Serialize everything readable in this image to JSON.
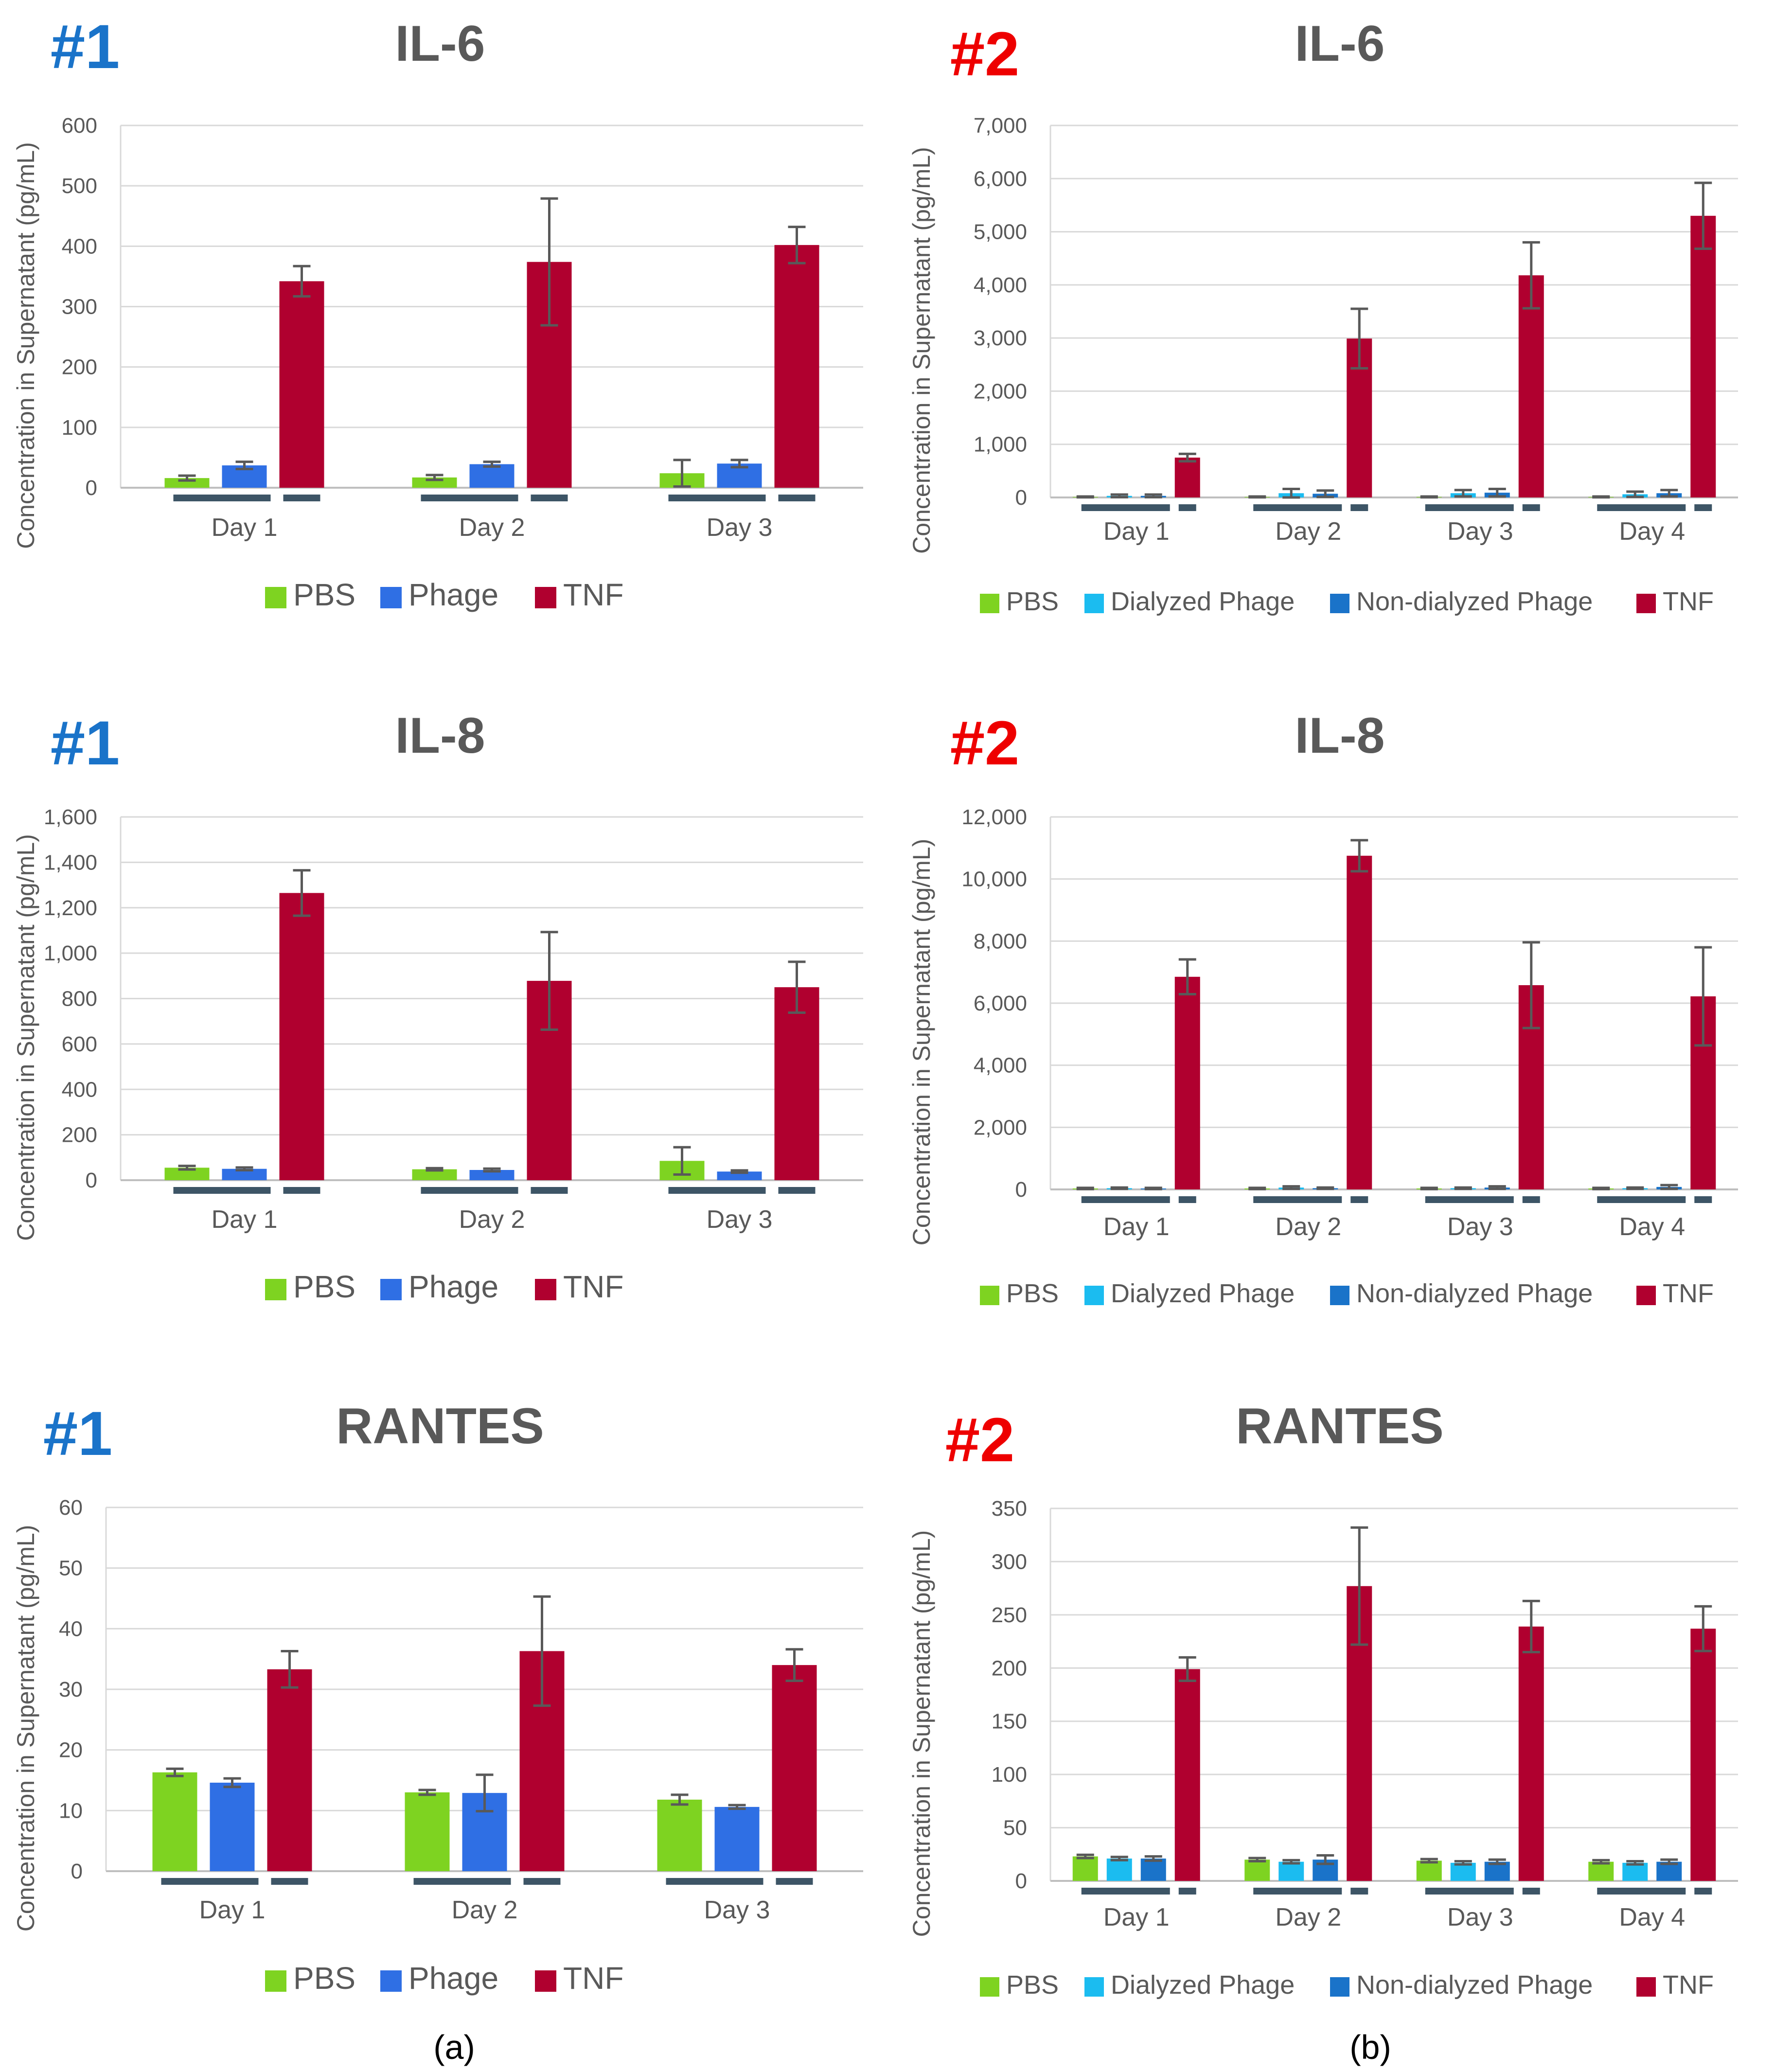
{
  "colors": {
    "PBS": "#7ed321",
    "Phage": "#2f6fe4",
    "Dialyzed Phage": "#1bbcf0",
    "Non-dialyzed Phage": "#1a73c9",
    "TNF": "#b0002f",
    "error": "#595959",
    "grid": "#d9d9d9",
    "marker": "#3d5566",
    "tag1": "#1a73c9",
    "tag2": "#ee0000"
  },
  "panel_labels": {
    "a": "(a)",
    "b": "(b)"
  },
  "chart_data": [
    {
      "type": "bar",
      "tag": "#1",
      "title": "IL-6",
      "ylabel": "Concentration in Supernatant (pg/mL)",
      "xlabel": "",
      "ylim": [
        0,
        600
      ],
      "yticks": [
        "0",
        "100",
        "200",
        "300",
        "400",
        "500",
        "600"
      ],
      "grid": true,
      "legend_position": "bottom",
      "categories": [
        "Day 1",
        "Day 2",
        "Day 3"
      ],
      "series": [
        {
          "name": "PBS",
          "values": [
            16,
            17,
            24
          ],
          "errors": [
            4,
            4,
            22
          ]
        },
        {
          "name": "Phage",
          "values": [
            37,
            39,
            40
          ],
          "errors": [
            6,
            4,
            6
          ]
        },
        {
          "name": "TNF",
          "values": [
            342,
            374,
            402
          ],
          "errors": [
            25,
            105,
            30
          ]
        }
      ]
    },
    {
      "type": "bar",
      "tag": "#2",
      "title": "IL-6",
      "ylabel": "Concentration in Supernatant (pg/mL)",
      "xlabel": "",
      "ylim": [
        0,
        7000
      ],
      "yticks": [
        "0",
        "1,000",
        "2,000",
        "3,000",
        "4,000",
        "5,000",
        "6,000",
        "7,000"
      ],
      "grid": true,
      "legend_position": "bottom",
      "categories": [
        "Day 1",
        "Day 2",
        "Day 3",
        "Day 4"
      ],
      "series": [
        {
          "name": "PBS",
          "values": [
            10,
            10,
            10,
            10
          ],
          "errors": [
            8,
            8,
            8,
            8
          ]
        },
        {
          "name": "Dialyzed Phage",
          "values": [
            30,
            80,
            80,
            60
          ],
          "errors": [
            25,
            80,
            60,
            50
          ]
        },
        {
          "name": "Non-dialyzed Phage",
          "values": [
            30,
            70,
            90,
            80
          ],
          "errors": [
            25,
            60,
            70,
            60
          ]
        },
        {
          "name": "TNF",
          "values": [
            750,
            2990,
            4180,
            5300
          ],
          "errors": [
            70,
            560,
            620,
            620
          ]
        }
      ]
    },
    {
      "type": "bar",
      "tag": "#1",
      "title": "IL-8",
      "ylabel": "Concentration in Supernatant (pg/mL)",
      "xlabel": "",
      "ylim": [
        0,
        1600
      ],
      "yticks": [
        "0",
        "200",
        "400",
        "600",
        "800",
        "1,000",
        "1,200",
        "1,400",
        "1,600"
      ],
      "grid": true,
      "legend_position": "bottom",
      "categories": [
        "Day 1",
        "Day 2",
        "Day 3"
      ],
      "series": [
        {
          "name": "PBS",
          "values": [
            55,
            48,
            85
          ],
          "errors": [
            8,
            5,
            60
          ]
        },
        {
          "name": "Phage",
          "values": [
            50,
            45,
            38
          ],
          "errors": [
            6,
            6,
            5
          ]
        },
        {
          "name": "TNF",
          "values": [
            1265,
            878,
            850
          ],
          "errors": [
            100,
            215,
            112
          ]
        }
      ]
    },
    {
      "type": "bar",
      "tag": "#2",
      "title": "IL-8",
      "ylabel": "Concentration in Supernatant (pg/mL)",
      "xlabel": "",
      "ylim": [
        0,
        12000
      ],
      "yticks": [
        "0",
        "2,000",
        "4,000",
        "6,000",
        "8,000",
        "10,000",
        "12,000"
      ],
      "grid": true,
      "legend_position": "bottom",
      "categories": [
        "Day 1",
        "Day 2",
        "Day 3",
        "Day 4"
      ],
      "series": [
        {
          "name": "PBS",
          "values": [
            30,
            30,
            30,
            30
          ],
          "errors": [
            20,
            20,
            20,
            20
          ]
        },
        {
          "name": "Dialyzed Phage",
          "values": [
            40,
            60,
            40,
            40
          ],
          "errors": [
            20,
            40,
            20,
            20
          ]
        },
        {
          "name": "Non-dialyzed Phage",
          "values": [
            30,
            40,
            60,
            80
          ],
          "errors": [
            20,
            20,
            40,
            60
          ]
        },
        {
          "name": "TNF",
          "values": [
            6850,
            10750,
            6580,
            6220
          ],
          "errors": [
            560,
            500,
            1380,
            1580
          ]
        }
      ]
    },
    {
      "type": "bar",
      "tag": "#1",
      "title": "RANTES",
      "ylabel": "Concentration in Supernatant (pg/mL)",
      "xlabel": "",
      "ylim": [
        0,
        60
      ],
      "yticks": [
        "0",
        "10",
        "20",
        "30",
        "40",
        "50",
        "60"
      ],
      "grid": true,
      "legend_position": "bottom",
      "categories": [
        "Day 1",
        "Day 2",
        "Day 3"
      ],
      "series": [
        {
          "name": "PBS",
          "values": [
            16.3,
            13.0,
            11.8
          ],
          "errors": [
            0.6,
            0.4,
            0.8
          ]
        },
        {
          "name": "Phage",
          "values": [
            14.6,
            12.9,
            10.6
          ],
          "errors": [
            0.7,
            3.0,
            0.3
          ]
        },
        {
          "name": "TNF",
          "values": [
            33.3,
            36.3,
            34.0
          ],
          "errors": [
            3.0,
            9.0,
            2.6
          ]
        }
      ]
    },
    {
      "type": "bar",
      "tag": "#2",
      "title": "RANTES",
      "ylabel": "Concentration in Supernatant (pg/mL)",
      "xlabel": "",
      "ylim": [
        0,
        350
      ],
      "yticks": [
        "0",
        "50",
        "100",
        "150",
        "200",
        "250",
        "300",
        "350"
      ],
      "grid": true,
      "legend_position": "bottom",
      "categories": [
        "Day 1",
        "Day 2",
        "Day 3",
        "Day 4"
      ],
      "series": [
        {
          "name": "PBS",
          "values": [
            23,
            20,
            19,
            18
          ],
          "errors": [
            1.5,
            1.5,
            1.5,
            1.5
          ]
        },
        {
          "name": "Dialyzed Phage",
          "values": [
            21,
            18,
            17,
            17
          ],
          "errors": [
            1.5,
            1.5,
            1.5,
            1.5
          ]
        },
        {
          "name": "Non-dialyzed Phage",
          "values": [
            21,
            20,
            18,
            18
          ],
          "errors": [
            2,
            4,
            2,
            2
          ]
        },
        {
          "name": "TNF",
          "values": [
            199,
            277,
            239,
            237
          ],
          "errors": [
            11,
            55,
            24,
            21
          ]
        }
      ]
    }
  ]
}
